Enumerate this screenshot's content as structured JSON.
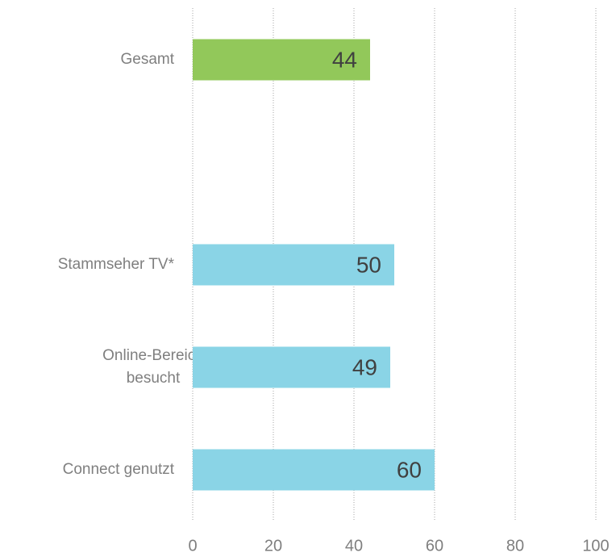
{
  "chart_data": {
    "type": "bar",
    "orientation": "horizontal",
    "categories": [
      "Gesamt",
      null,
      "Stammseher TV*",
      "Online-Bereich besucht",
      "Connect genutzt"
    ],
    "values": [
      44,
      null,
      50,
      49,
      60
    ],
    "colors": [
      "#92c85a",
      null,
      "#8ad4e6",
      "#8ad4e6",
      "#8ad4e6"
    ],
    "xlim": [
      0,
      100
    ],
    "xticks": [
      0,
      20,
      40,
      60,
      80,
      100
    ],
    "grid": true
  }
}
